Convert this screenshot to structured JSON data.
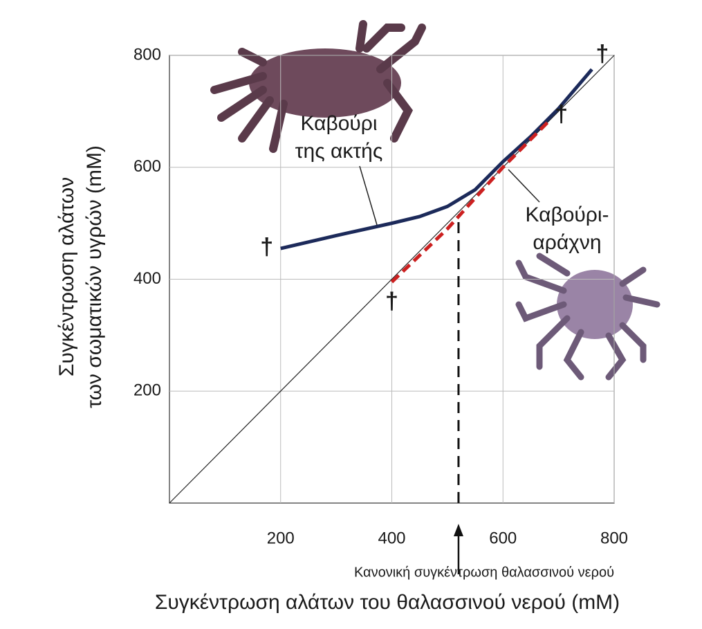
{
  "chart_data": {
    "type": "line",
    "xlabel": "Συγκέντρωση αλάτων του θαλασσινού νερού (mM)",
    "ylabel": [
      "Συγκέντρωση αλάτων",
      "των σωματικών υγρών (mM)"
    ],
    "xlim": [
      0,
      800
    ],
    "ylim": [
      0,
      800
    ],
    "xticks": [
      200,
      400,
      600,
      800
    ],
    "yticks": [
      200,
      400,
      600,
      800
    ],
    "grid": true,
    "reference_line": {
      "x": [
        0,
        800
      ],
      "values": [
        0,
        800
      ],
      "color": "#222222"
    },
    "series": [
      {
        "color": "#1c2a5a",
        "dashed": false,
        "x": [
          200,
          300,
          400,
          450,
          500,
          550,
          600,
          650,
          700,
          760
        ],
        "values": [
          455,
          478,
          500,
          512,
          530,
          560,
          610,
          655,
          705,
          775
        ]
      },
      {
        "color": "#cc2020",
        "dashed": true,
        "x": [
          400,
          500,
          600,
          680
        ],
        "values": [
          395,
          490,
          600,
          680
        ]
      }
    ],
    "death_marker": "†",
    "annotations": [
      {
        "lines": [
          "Καβούρι",
          "της ακτής"
        ]
      },
      {
        "lines": [
          "Καβούρι-",
          "αράχνη"
        ]
      }
    ],
    "seawater": {
      "x": 520,
      "y": 515,
      "label": "Κανονική συγκέντρωση θαλασσινού νερού"
    }
  }
}
